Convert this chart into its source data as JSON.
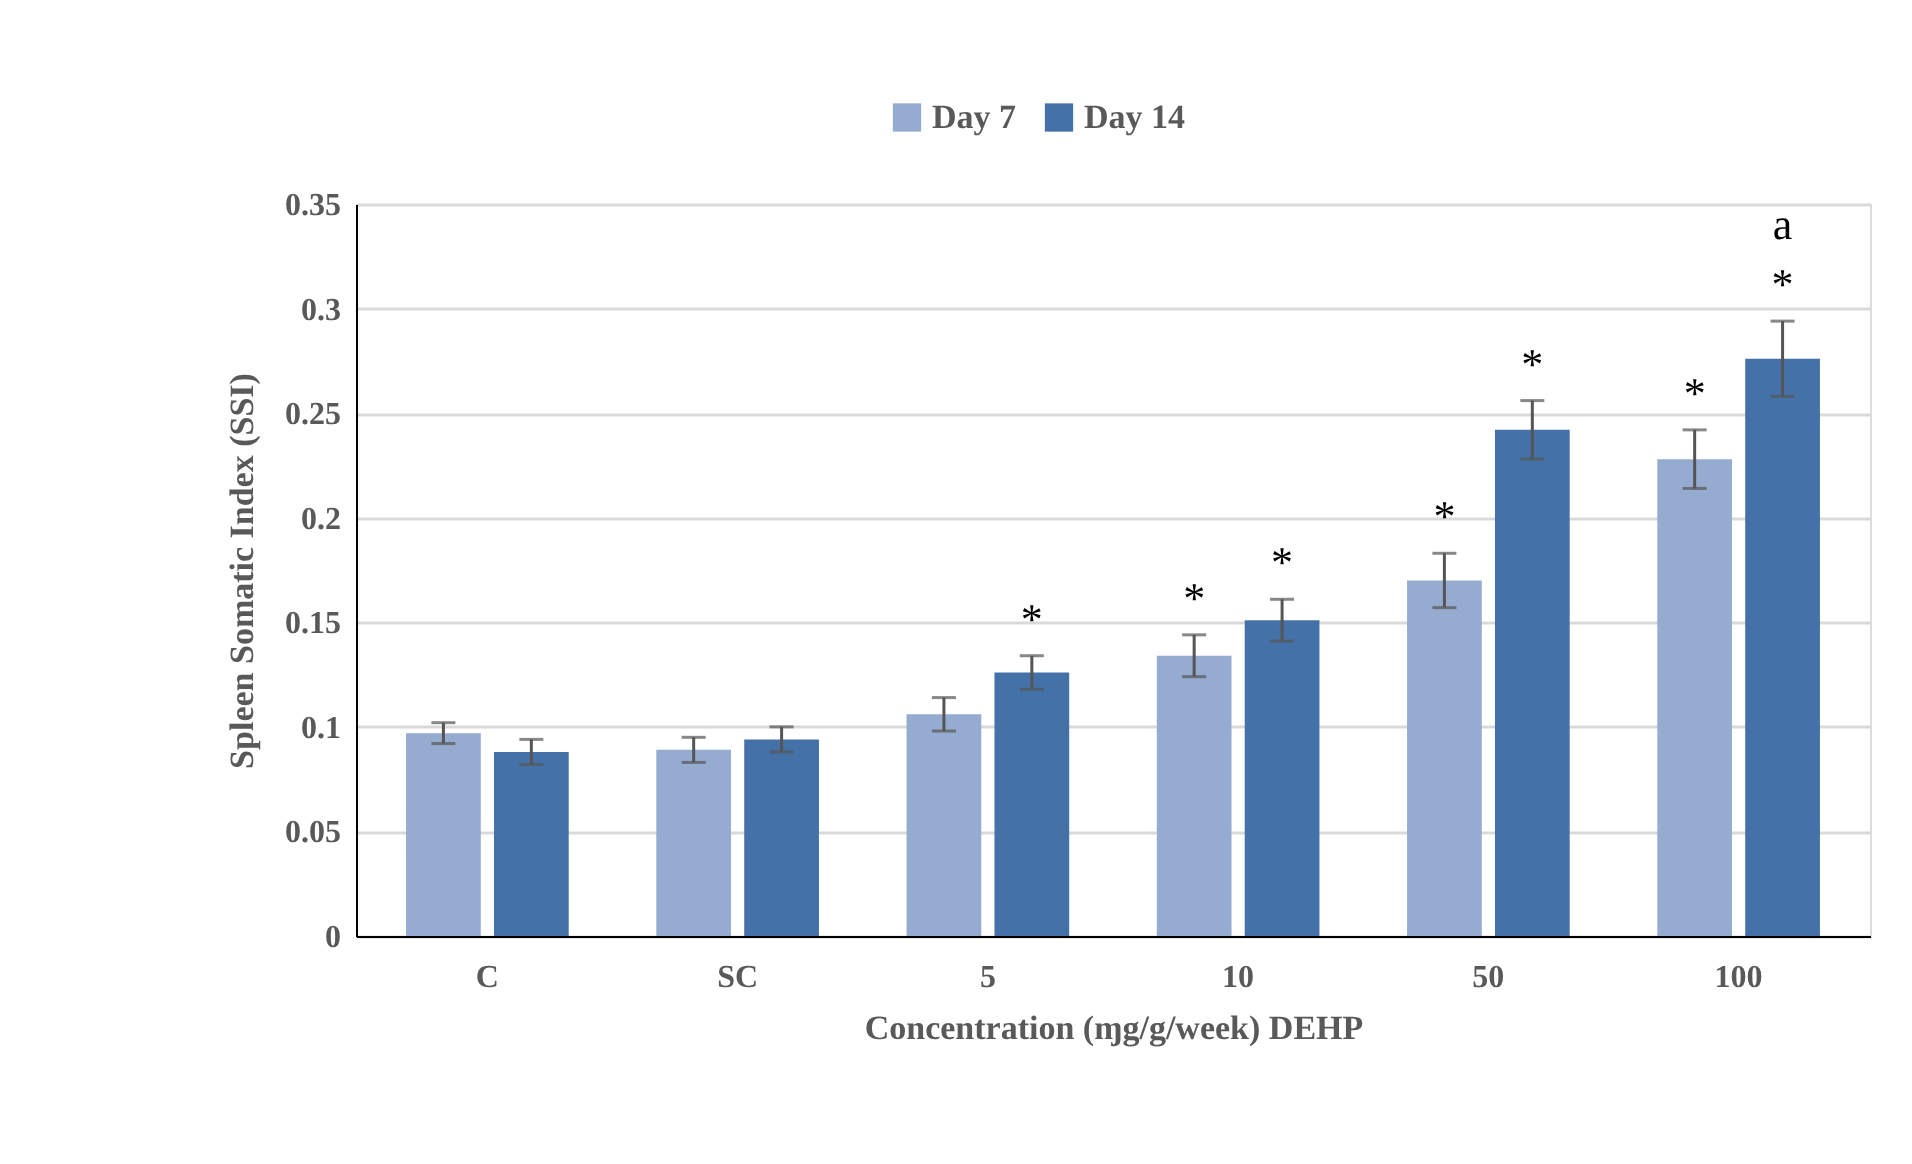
{
  "chart_data": {
    "type": "bar",
    "xlabel": "Concentration (ɱg/g/week) DEHP",
    "ylabel": "Spleen Somatic Index (SSI)",
    "categories": [
      "C",
      "SC",
      "5",
      "10",
      "50",
      "100"
    ],
    "series": [
      {
        "name": "Day 7",
        "color": "#95abd0",
        "values": [
          0.097,
          0.089,
          0.106,
          0.134,
          0.17,
          0.228
        ],
        "errors": [
          0.005,
          0.006,
          0.008,
          0.01,
          0.013,
          0.014
        ]
      },
      {
        "name": "Day 14",
        "color": "#4472a8",
        "values": [
          0.088,
          0.094,
          0.126,
          0.151,
          0.242,
          0.276
        ],
        "errors": [
          0.006,
          0.006,
          0.008,
          0.01,
          0.014,
          0.018
        ]
      }
    ],
    "ylim": [
      0,
      0.35
    ],
    "yticks": [
      0,
      0.05,
      0.1,
      0.15,
      0.2,
      0.25,
      0.3,
      0.35
    ],
    "grid": "y",
    "legend": "top",
    "annotations": [
      {
        "text": "*",
        "x": "5",
        "y": 0.126
      },
      {
        "text": "*",
        "x": "10",
        "y": 0.134
      },
      {
        "text": "*",
        "x": "10",
        "y": 0.151
      },
      {
        "text": "*",
        "x": "50",
        "y": 0.17
      },
      {
        "text": "*",
        "x": "50",
        "y": 0.242
      },
      {
        "text": "*",
        "x": "100",
        "y": 0.228
      },
      {
        "text": "*",
        "x": "100",
        "y": 0.276
      },
      {
        "text": "a",
        "x": "100",
        "y": 0.276
      }
    ]
  }
}
